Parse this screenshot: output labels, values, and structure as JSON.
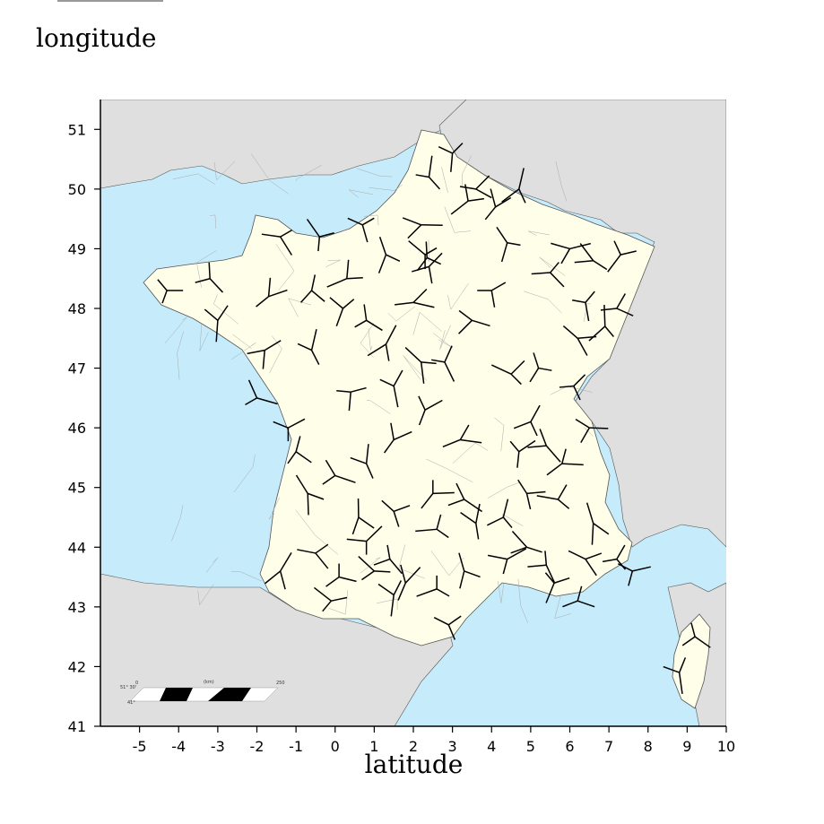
{
  "axes": {
    "ylabel": "longitude",
    "xlabel": "latitude",
    "xlim": [
      -6,
      10
    ],
    "ylim": [
      41,
      51.5
    ],
    "xticks": [
      -5,
      -4,
      -3,
      -2,
      -1,
      0,
      1,
      2,
      3,
      4,
      5,
      6,
      7,
      8,
      9,
      10
    ],
    "yticks": [
      41,
      42,
      43,
      44,
      45,
      46,
      47,
      48,
      49,
      50,
      51
    ]
  },
  "colors": {
    "sea": "#c6ebfb",
    "land_france": "#fefee9",
    "land_other": "#dfdfdf",
    "border": "#555555",
    "glyph": "#000000"
  },
  "scale_bar": {
    "zero": "0",
    "unit": "(km)",
    "max": "250",
    "lat_top": "51° 30'",
    "lat_bottom": "41°"
  },
  "glyph_points": [
    [
      -4.3,
      48.3
    ],
    [
      -3.2,
      48.5
    ],
    [
      -3.0,
      47.8
    ],
    [
      -1.7,
      48.2
    ],
    [
      -1.4,
      49.2
    ],
    [
      -0.4,
      49.2
    ],
    [
      -0.6,
      48.3
    ],
    [
      -1.8,
      47.3
    ],
    [
      -2.0,
      46.5
    ],
    [
      -0.6,
      47.3
    ],
    [
      0.2,
      48.0
    ],
    [
      0.3,
      48.5
    ],
    [
      0.7,
      49.4
    ],
    [
      1.3,
      48.9
    ],
    [
      1.3,
      47.4
    ],
    [
      0.4,
      46.6
    ],
    [
      0.8,
      47.8
    ],
    [
      1.5,
      46.7
    ],
    [
      1.5,
      45.8
    ],
    [
      2.0,
      48.1
    ],
    [
      2.3,
      48.9
    ],
    [
      2.35,
      48.85
    ],
    [
      2.4,
      48.7
    ],
    [
      2.2,
      49.4
    ],
    [
      2.4,
      50.2
    ],
    [
      3.0,
      50.6
    ],
    [
      3.4,
      49.8
    ],
    [
      3.6,
      50.0
    ],
    [
      4.4,
      49.1
    ],
    [
      4.7,
      50.0
    ],
    [
      4.0,
      48.3
    ],
    [
      3.5,
      47.8
    ],
    [
      2.8,
      47.1
    ],
    [
      2.3,
      46.3
    ],
    [
      3.2,
      45.8
    ],
    [
      4.5,
      46.9
    ],
    [
      5.2,
      47.0
    ],
    [
      5.0,
      46.1
    ],
    [
      6.0,
      49.0
    ],
    [
      6.6,
      48.8
    ],
    [
      6.4,
      48.1
    ],
    [
      7.3,
      48.9
    ],
    [
      7.2,
      48.0
    ],
    [
      6.2,
      47.5
    ],
    [
      6.9,
      47.7
    ],
    [
      6.1,
      46.7
    ],
    [
      6.5,
      46.0
    ],
    [
      5.4,
      45.7
    ],
    [
      4.7,
      45.6
    ],
    [
      5.8,
      45.4
    ],
    [
      5.7,
      44.8
    ],
    [
      4.9,
      44.9
    ],
    [
      4.3,
      44.5
    ],
    [
      4.4,
      43.8
    ],
    [
      4.9,
      44.0
    ],
    [
      5.4,
      43.7
    ],
    [
      5.6,
      43.4
    ],
    [
      6.2,
      43.1
    ],
    [
      6.4,
      43.8
    ],
    [
      6.6,
      44.4
    ],
    [
      7.2,
      43.8
    ],
    [
      7.6,
      43.6
    ],
    [
      3.3,
      44.8
    ],
    [
      3.6,
      44.4
    ],
    [
      2.5,
      44.9
    ],
    [
      2.6,
      44.3
    ],
    [
      1.5,
      44.6
    ],
    [
      0.6,
      44.5
    ],
    [
      0.8,
      44.1
    ],
    [
      1.0,
      43.6
    ],
    [
      1.4,
      43.8
    ],
    [
      1.5,
      43.2
    ],
    [
      0.1,
      43.5
    ],
    [
      -0.5,
      43.9
    ],
    [
      -0.7,
      44.9
    ],
    [
      -1.0,
      45.6
    ],
    [
      -1.2,
      46.0
    ],
    [
      0.0,
      45.2
    ],
    [
      0.8,
      45.4
    ],
    [
      1.8,
      43.4
    ],
    [
      2.6,
      43.3
    ],
    [
      2.9,
      42.7
    ],
    [
      3.3,
      43.6
    ],
    [
      -1.4,
      43.6
    ],
    [
      -0.1,
      43.1
    ],
    [
      9.2,
      42.5
    ],
    [
      8.8,
      41.9
    ],
    [
      4.1,
      49.7
    ],
    [
      5.5,
      48.6
    ],
    [
      2.2,
      47.1
    ]
  ]
}
